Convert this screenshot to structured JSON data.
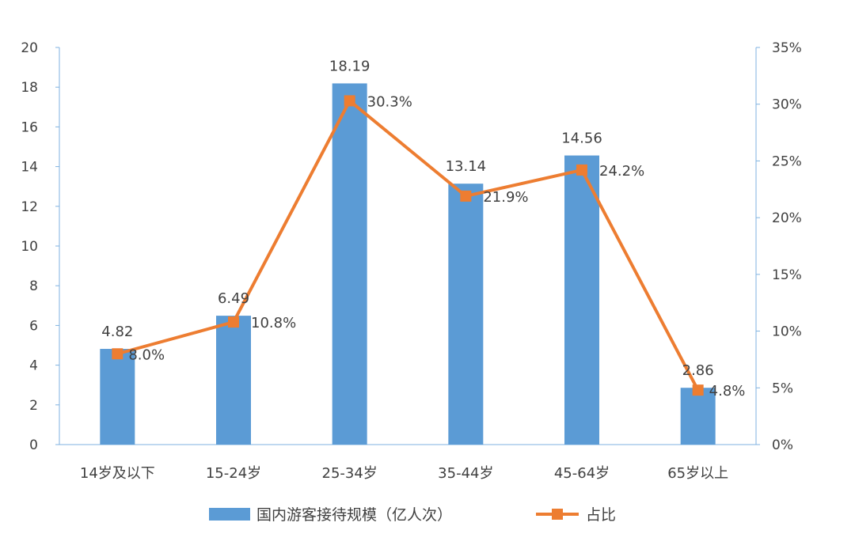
{
  "chart_data": {
    "type": "bar",
    "categories": [
      "14岁及以下",
      "15-24岁",
      "25-34岁",
      "35-44岁",
      "45-64岁",
      "65岁以上"
    ],
    "series": [
      {
        "name": "国内游客接待规模（亿人次）",
        "type": "bar",
        "axis": "left",
        "values": [
          4.82,
          6.49,
          18.19,
          13.14,
          14.56,
          2.86
        ],
        "labels": [
          "4.82",
          "6.49",
          "18.19",
          "13.14",
          "14.56",
          "2.86"
        ],
        "color": "#5b9bd5"
      },
      {
        "name": "占比",
        "type": "line",
        "axis": "right",
        "values": [
          8.0,
          10.8,
          30.3,
          21.9,
          24.2,
          4.8
        ],
        "labels": [
          "8.0%",
          "10.8%",
          "30.3%",
          "21.9%",
          "24.2%",
          "4.8%"
        ],
        "color": "#ed7d31",
        "marker": "square"
      }
    ],
    "y_left": {
      "min": 0,
      "max": 20,
      "ticks": [
        "0",
        "2",
        "4",
        "6",
        "8",
        "10",
        "12",
        "14",
        "16",
        "18",
        "20"
      ]
    },
    "y_right": {
      "min": 0,
      "max": 35,
      "ticks": [
        "0%",
        "5%",
        "10%",
        "15%",
        "20%",
        "25%",
        "30%",
        "35%"
      ]
    },
    "grid": false,
    "legend_position": "bottom",
    "title": "",
    "xlabel": "",
    "ylabel": ""
  },
  "colors": {
    "bar": "#5b9bd5",
    "line": "#ed7d31",
    "axis": "#7fb2e0",
    "text": "#404040"
  }
}
